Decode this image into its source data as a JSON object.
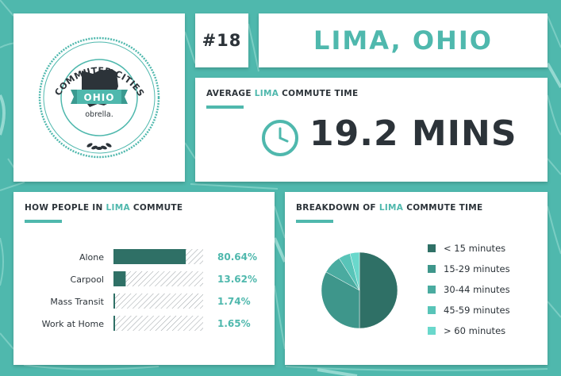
{
  "rank": "#18",
  "city": "LIMA, OHIO",
  "badge": {
    "ring_text": "40 BEST COMMUTER CITIES IN OHIO",
    "state_label": "OHIO",
    "brand": "obrella."
  },
  "average": {
    "title_prefix": "AVERAGE ",
    "title_city": "LIMA",
    "title_suffix": " COMMUTE TIME",
    "value": "19.2 MINS",
    "icon": "clock-icon"
  },
  "how_people": {
    "title_prefix": "HOW PEOPLE IN ",
    "title_city": "LIMA",
    "title_suffix": " COMMUTE"
  },
  "breakdown": {
    "title_prefix": "BREAKDOWN OF ",
    "title_city": "LIMA",
    "title_suffix": " COMMUTE TIME"
  },
  "colors": {
    "teal": "#4fb8ad",
    "dark_text": "#2c3339",
    "bar_fill": "#2f7066"
  },
  "chart_data": [
    {
      "type": "bar",
      "orientation": "horizontal",
      "categories": [
        "Alone",
        "Carpool",
        "Mass Transit",
        "Work at Home"
      ],
      "values": [
        80.64,
        13.62,
        1.74,
        1.65
      ],
      "value_labels": [
        "80.64%",
        "13.62%",
        "1.74%",
        "1.65%"
      ],
      "xlim": [
        0,
        100
      ]
    },
    {
      "type": "pie",
      "labels": [
        "< 15 minutes",
        "15-29 minutes",
        "30-44 minutes",
        "45-59 minutes",
        "> 60 minutes"
      ],
      "values": [
        50,
        33,
        8,
        5,
        4
      ],
      "colors": [
        "#2f7066",
        "#3e968b",
        "#4aaba0",
        "#58c4b8",
        "#6ad8cc"
      ],
      "legend": "right"
    }
  ]
}
